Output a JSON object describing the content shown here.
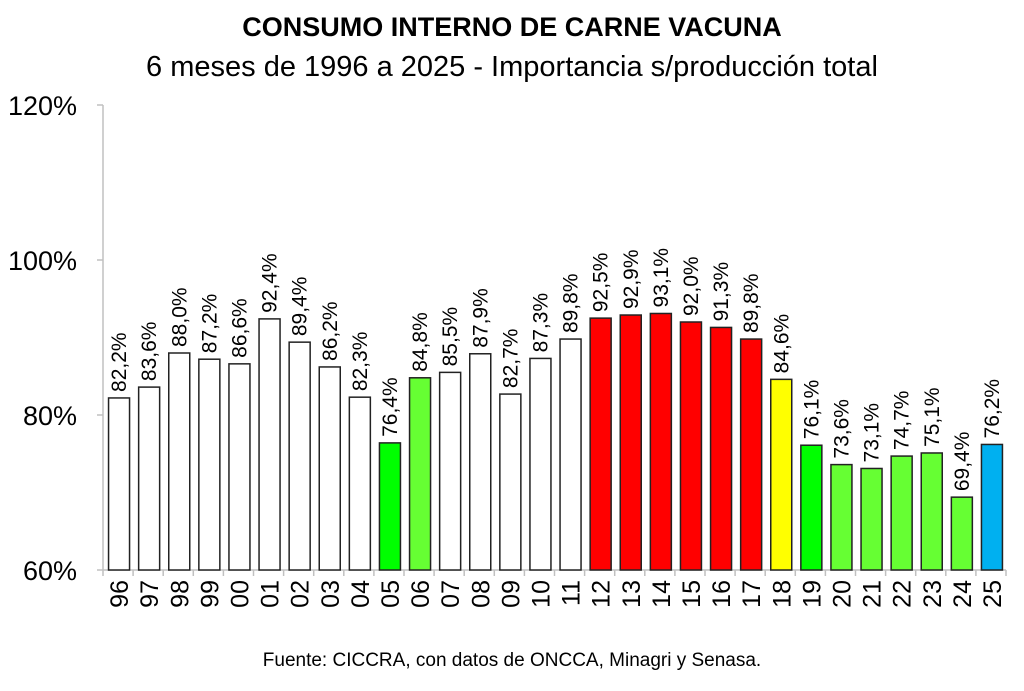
{
  "chart_data": {
    "type": "bar",
    "title": "CONSUMO INTERNO DE CARNE VACUNA",
    "subtitle": "6 meses de 1996 a 2025 - Importancia s/producción total",
    "source": "Fuente: CICCRA, con datos de ONCCA, Minagri y Senasa.",
    "xlabel": "",
    "ylabel": "",
    "ylim": [
      60,
      120
    ],
    "yticks": [
      "60%",
      "80%",
      "100%",
      "120%"
    ],
    "ytick_values": [
      60,
      80,
      100,
      120
    ],
    "grid": false,
    "categories": [
      "96",
      "97",
      "98",
      "99",
      "00",
      "01",
      "02",
      "03",
      "04",
      "05",
      "06",
      "07",
      "08",
      "09",
      "10",
      "11",
      "12",
      "13",
      "14",
      "15",
      "16",
      "17",
      "18",
      "19",
      "20",
      "21",
      "22",
      "23",
      "24",
      "25"
    ],
    "values": [
      82.2,
      83.6,
      88.0,
      87.2,
      86.6,
      92.4,
      89.4,
      86.2,
      82.3,
      76.4,
      84.8,
      85.5,
      87.9,
      82.7,
      87.3,
      89.8,
      92.5,
      92.9,
      93.1,
      92.0,
      91.3,
      89.8,
      84.6,
      76.1,
      73.6,
      73.1,
      74.7,
      75.1,
      69.4,
      76.2
    ],
    "data_labels": [
      "82,2%",
      "83,6%",
      "88,0%",
      "87,2%",
      "86,6%",
      "92,4%",
      "89,4%",
      "86,2%",
      "82,3%",
      "76,4%",
      "84,8%",
      "85,5%",
      "87,9%",
      "82,7%",
      "87,3%",
      "89,8%",
      "92,5%",
      "92,9%",
      "93,1%",
      "92,0%",
      "91,3%",
      "89,8%",
      "84,6%",
      "76,1%",
      "73,6%",
      "73,1%",
      "74,7%",
      "75,1%",
      "69,4%",
      "76,2%"
    ],
    "bar_colors": [
      "#ffffff",
      "#ffffff",
      "#ffffff",
      "#ffffff",
      "#ffffff",
      "#ffffff",
      "#ffffff",
      "#ffffff",
      "#ffffff",
      "#00ff00",
      "#66ff33",
      "#ffffff",
      "#ffffff",
      "#ffffff",
      "#ffffff",
      "#ffffff",
      "#ff0000",
      "#ff0000",
      "#ff0000",
      "#ff0000",
      "#ff0000",
      "#ff0000",
      "#ffff00",
      "#00ff00",
      "#66ff33",
      "#66ff33",
      "#66ff33",
      "#66ff33",
      "#66ff33",
      "#00b0f0"
    ]
  }
}
